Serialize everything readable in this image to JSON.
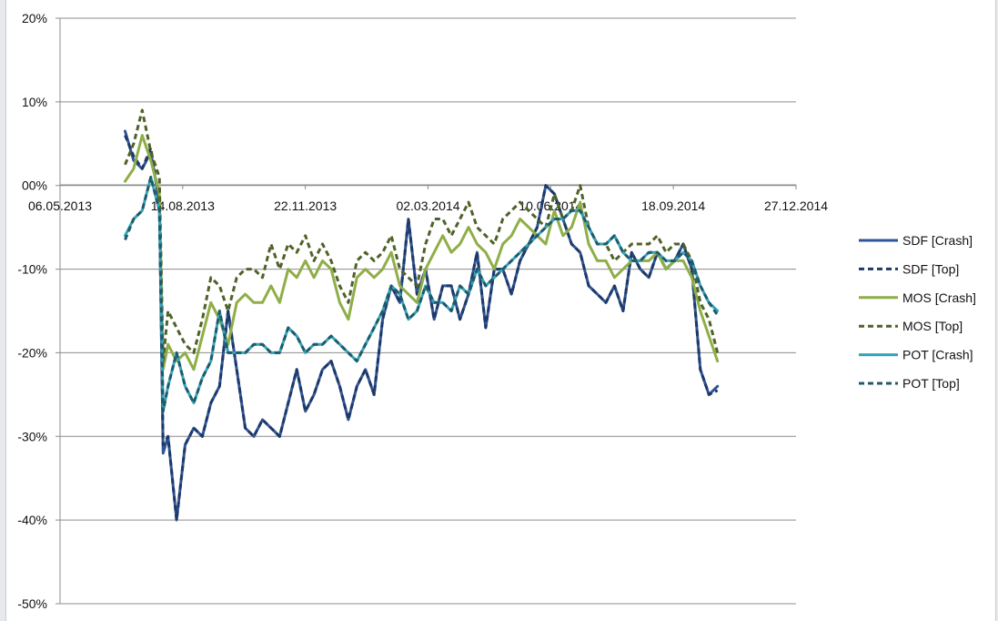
{
  "chart_data": {
    "type": "line",
    "title": "",
    "xlabel": "",
    "ylabel": "",
    "x_ticks": [
      "06.05.2013",
      "14.08.2013",
      "22.11.2013",
      "02.03.2014",
      "10.06.2014",
      "18.09.2014",
      "27.12.2014"
    ],
    "y_ticks": [
      "20%",
      "10%",
      "00%",
      "-10%",
      "-20%",
      "-30%",
      "-40%",
      "-50%"
    ],
    "ylim": [
      -50,
      20
    ],
    "xlim": [
      "2013-05-06",
      "2014-12-27"
    ],
    "grid": "horizontal",
    "legend": "right",
    "dates": [
      "2013-06-28",
      "2013-07-05",
      "2013-07-12",
      "2013-07-19",
      "2013-07-26",
      "2013-07-29",
      "2013-08-02",
      "2013-08-09",
      "2013-08-16",
      "2013-08-23",
      "2013-08-30",
      "2013-09-06",
      "2013-09-13",
      "2013-09-20",
      "2013-09-27",
      "2013-10-04",
      "2013-10-11",
      "2013-10-18",
      "2013-10-25",
      "2013-11-01",
      "2013-11-08",
      "2013-11-15",
      "2013-11-22",
      "2013-11-29",
      "2013-12-06",
      "2013-12-13",
      "2013-12-20",
      "2013-12-27",
      "2014-01-03",
      "2014-01-10",
      "2014-01-17",
      "2014-01-24",
      "2014-01-31",
      "2014-02-07",
      "2014-02-14",
      "2014-02-21",
      "2014-02-28",
      "2014-03-07",
      "2014-03-14",
      "2014-03-21",
      "2014-03-28",
      "2014-04-04",
      "2014-04-11",
      "2014-04-18",
      "2014-04-25",
      "2014-05-02",
      "2014-05-09",
      "2014-05-16",
      "2014-05-23",
      "2014-05-30",
      "2014-06-06",
      "2014-06-13",
      "2014-06-20",
      "2014-06-27",
      "2014-07-04",
      "2014-07-11",
      "2014-07-18",
      "2014-07-25",
      "2014-08-01",
      "2014-08-08",
      "2014-08-15",
      "2014-08-22",
      "2014-08-29",
      "2014-09-05",
      "2014-09-12",
      "2014-09-19",
      "2014-09-26",
      "2014-10-03",
      "2014-10-10",
      "2014-10-17",
      "2014-10-24"
    ],
    "series": [
      {
        "name": "SDF [Crash]",
        "color": "#2e5597",
        "dash": false,
        "values": [
          6.5,
          3,
          2,
          4,
          -2,
          -32,
          -30,
          -40,
          -31,
          -29,
          -30,
          -26,
          -24,
          -15,
          -22,
          -29,
          -30,
          -28,
          -29,
          -30,
          -26,
          -22,
          -27,
          -25,
          -22,
          -21,
          -24,
          -28,
          -24,
          -22,
          -25,
          -16,
          -12,
          -14,
          -4,
          -13,
          -10,
          -16,
          -12,
          -12,
          -16,
          -13,
          -8,
          -17,
          -10,
          -10,
          -13,
          -9,
          -7,
          -5,
          0,
          -1,
          -4,
          -7,
          -8,
          -12,
          -13,
          -14,
          -12,
          -15,
          -8,
          -10,
          -11,
          -8,
          -10,
          -9,
          -7,
          -10,
          -22,
          -25,
          -24
        ]
      },
      {
        "name": "SDF [Top]",
        "color": "#1f3864",
        "dash": true,
        "values": [
          6,
          3.5,
          2,
          4.5,
          -2,
          -31,
          -30,
          -40,
          -31,
          -29,
          -30,
          -26,
          -24,
          -15,
          -22,
          -29,
          -30,
          -28,
          -29,
          -30,
          -26,
          -22,
          -27,
          -25,
          -22,
          -21,
          -24,
          -28,
          -24,
          -22,
          -25,
          -16,
          -12,
          -14,
          -4,
          -13,
          -10,
          -16,
          -12,
          -12,
          -16,
          -13,
          -8,
          -17,
          -10,
          -10,
          -13,
          -9,
          -7,
          -5,
          0,
          -1,
          -4,
          -7,
          -8,
          -12,
          -13,
          -14,
          -12,
          -15,
          -8,
          -10,
          -11,
          -8,
          -10,
          -9,
          -7,
          -10,
          -22,
          -25,
          -24.5
        ]
      },
      {
        "name": "MOS [Crash]",
        "color": "#8fae47",
        "dash": false,
        "values": [
          0.5,
          2,
          6,
          3,
          -1,
          -22,
          -19,
          -21,
          -20,
          -22,
          -18,
          -14,
          -16,
          -19,
          -14,
          -13,
          -14,
          -14,
          -12,
          -14,
          -10,
          -11,
          -9,
          -11,
          -9,
          -10,
          -14,
          -16,
          -11,
          -10,
          -11,
          -10,
          -8,
          -12,
          -13,
          -14,
          -10,
          -8,
          -6,
          -8,
          -7,
          -5,
          -7,
          -8,
          -10,
          -7,
          -6,
          -4,
          -5,
          -6,
          -7,
          -3,
          -6,
          -5,
          -2,
          -7,
          -9,
          -9,
          -11,
          -10,
          -9,
          -9,
          -9,
          -8,
          -10,
          -9,
          -9,
          -11,
          -15,
          -18,
          -21
        ]
      },
      {
        "name": "MOS [Top]",
        "color": "#4f6228",
        "dash": true,
        "values": [
          2.5,
          5,
          9,
          4,
          1,
          -21,
          -15,
          -17,
          -19,
          -20,
          -16,
          -11,
          -12,
          -15,
          -11,
          -10,
          -10,
          -11,
          -7,
          -10,
          -7,
          -8,
          -6,
          -9,
          -7,
          -9,
          -12,
          -14,
          -9,
          -8,
          -9,
          -8,
          -6,
          -10,
          -11,
          -12,
          -7,
          -4,
          -4,
          -6,
          -4,
          -2,
          -5,
          -6,
          -7,
          -4,
          -3,
          -2,
          -3,
          -4,
          -5,
          -1,
          -4,
          -3,
          0,
          -5,
          -7,
          -7,
          -9,
          -8,
          -7,
          -7,
          -7,
          -6,
          -8,
          -7,
          -7,
          -9,
          -14,
          -16,
          -20
        ]
      },
      {
        "name": "POT [Crash]",
        "color": "#31a4b9",
        "dash": false,
        "values": [
          -6,
          -4,
          -3,
          1,
          -3,
          -27,
          -24,
          -20,
          -24,
          -26,
          -23,
          -21,
          -15,
          -20,
          -20,
          -20,
          -19,
          -19,
          -20,
          -20,
          -17,
          -18,
          -20,
          -19,
          -19,
          -18,
          -19,
          -20,
          -21,
          -19,
          -17,
          -15,
          -12,
          -13,
          -16,
          -15,
          -12,
          -14,
          -14,
          -15,
          -12,
          -13,
          -10,
          -12,
          -11,
          -10,
          -9,
          -8,
          -7,
          -6,
          -5,
          -4,
          -4,
          -3,
          -3,
          -5,
          -7,
          -7,
          -6,
          -8,
          -9,
          -9,
          -8,
          -8,
          -9,
          -9,
          -8,
          -9,
          -12,
          -14,
          -15
        ]
      },
      {
        "name": "POT [Top]",
        "color": "#215968",
        "dash": true,
        "values": [
          -6.5,
          -4,
          -3,
          1,
          -3,
          -27,
          -24,
          -20,
          -24,
          -26,
          -23,
          -21,
          -15,
          -20,
          -20,
          -20,
          -19,
          -19,
          -20,
          -20,
          -17,
          -18,
          -20,
          -19,
          -19,
          -18,
          -19,
          -20,
          -21,
          -19,
          -17,
          -15,
          -12,
          -13,
          -16,
          -15,
          -12,
          -14,
          -14,
          -15,
          -12,
          -13,
          -10,
          -12,
          -11,
          -10,
          -9,
          -8,
          -7,
          -6,
          -5,
          -4,
          -4,
          -3,
          -3,
          -5,
          -7,
          -7,
          -6,
          -8,
          -9,
          -9,
          -8,
          -8,
          -9,
          -9,
          -8,
          -9,
          -12,
          -14,
          -15.5
        ]
      }
    ]
  }
}
